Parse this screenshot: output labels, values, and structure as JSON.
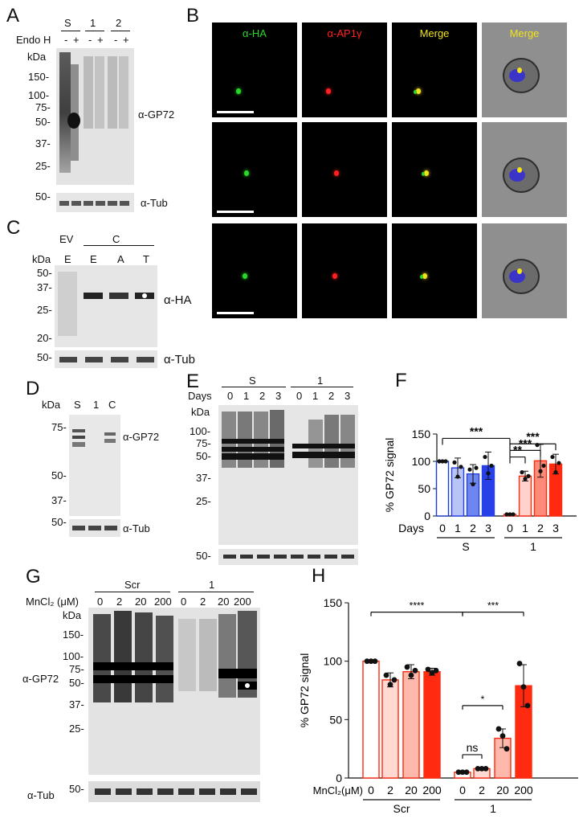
{
  "colors": {
    "ha_green": "#29d629",
    "ap1_red": "#ff2020",
    "merge_yellow": "#f2e21c",
    "s_blue_open": "#1a3fcc",
    "s_blue_fill": "#2740e8",
    "ko_red": "#ff2a10"
  },
  "panels": {
    "A": {
      "letter": "A",
      "lanes": [
        "S",
        "1",
        "2"
      ],
      "endo_label": "Endo H",
      "endo_marks": [
        "-",
        "+",
        "-",
        "+",
        "-",
        "+"
      ],
      "kda": "kDa",
      "markers": [
        "150-",
        "100-",
        "75-",
        "50-",
        "37-",
        "25-"
      ],
      "tub_marker": "50-",
      "antibody_top": "α-GP72",
      "antibody_bottom": "α-Tub"
    },
    "B": {
      "letter": "B",
      "channels": [
        "α-HA",
        "α-AP1γ",
        "Merge",
        "Merge"
      ]
    },
    "C": {
      "letter": "C",
      "group_ev": "EV",
      "group_c": "C",
      "lanes": [
        "E",
        "E",
        "A",
        "T"
      ],
      "kda": "kDa",
      "markers": [
        "50-",
        "37-",
        "25-",
        "20-"
      ],
      "tub_marker": "50-",
      "antibody_top": "α-HA",
      "antibody_bottom": "α-Tub"
    },
    "D": {
      "letter": "D",
      "kda": "kDa",
      "lanes": [
        "S",
        "1",
        "C"
      ],
      "markers": [
        "75-",
        "50-",
        "37-"
      ],
      "tub_marker": "50-",
      "antibody_top": "α-GP72",
      "antibody_bottom": "α-Tub"
    },
    "E": {
      "letter": "E",
      "groups": [
        "S",
        "1"
      ],
      "days_label": "Days",
      "days": [
        "0",
        "1",
        "2",
        "3",
        "0",
        "1",
        "2",
        "3"
      ],
      "kda": "kDa",
      "markers": [
        "100-",
        "75-",
        "50-",
        "37-",
        "25-"
      ],
      "tub_marker": "50-"
    },
    "G": {
      "letter": "G",
      "groups": [
        "Scr",
        "1"
      ],
      "mn_label": "MnCl₂ (μM)",
      "conc": [
        "0",
        "2",
        "20",
        "200",
        "0",
        "2",
        "20",
        "200"
      ],
      "kda": "kDa",
      "markers": [
        "150-",
        "100-",
        "75-",
        "50-",
        "37-",
        "25-"
      ],
      "tub_marker": "50-",
      "antibody_top": "α-GP72",
      "antibody_bottom": "α-Tub"
    },
    "F": {
      "letter": "F"
    },
    "H": {
      "letter": "H"
    }
  },
  "chart_data": [
    {
      "panel": "F",
      "type": "bar",
      "ylabel": "% GP72 signal",
      "ylim": [
        0,
        150
      ],
      "yticks": [
        "0",
        "50",
        "100",
        "150"
      ],
      "xlabel_prefix": "Days",
      "categories": [
        "0",
        "1",
        "2",
        "3",
        "0",
        "1",
        "2",
        "3"
      ],
      "groups": [
        "S",
        "1"
      ],
      "values": [
        100,
        88,
        77,
        92,
        3,
        73,
        101,
        95
      ],
      "errors": [
        0,
        18,
        17,
        25,
        1,
        9,
        30,
        18
      ],
      "points": [
        [
          100,
          100,
          100
        ],
        [
          98,
          72,
          90
        ],
        [
          85,
          58,
          88
        ],
        [
          108,
          78,
          92
        ],
        [
          3,
          3,
          3
        ],
        [
          80,
          68,
          73
        ],
        [
          130,
          82,
          92
        ],
        [
          108,
          80,
          97
        ]
      ],
      "significance": [
        "***",
        "***",
        "***",
        "**"
      ],
      "grid": false
    },
    {
      "panel": "H",
      "type": "bar",
      "ylabel": "% GP72 signal",
      "ylim": [
        0,
        150
      ],
      "yticks": [
        "0",
        "50",
        "100",
        "150"
      ],
      "xlabel_prefix": "MnCl₂(μM)",
      "categories": [
        "0",
        "2",
        "20",
        "200",
        "0",
        "2",
        "20",
        "200"
      ],
      "groups": [
        "Scr",
        "1"
      ],
      "values": [
        100,
        84,
        91,
        91,
        5,
        8,
        34,
        79
      ],
      "errors": [
        0,
        6,
        6,
        3,
        1,
        1,
        8,
        18
      ],
      "points": [
        [
          100,
          100,
          100
        ],
        [
          88,
          80,
          84
        ],
        [
          95,
          88,
          92
        ],
        [
          93,
          90,
          92
        ],
        [
          5,
          5,
          5
        ],
        [
          8,
          8,
          8
        ],
        [
          42,
          36,
          25
        ],
        [
          98,
          78,
          62
        ]
      ],
      "significance": [
        "****",
        "***",
        "*",
        "ns"
      ],
      "grid": false
    }
  ]
}
